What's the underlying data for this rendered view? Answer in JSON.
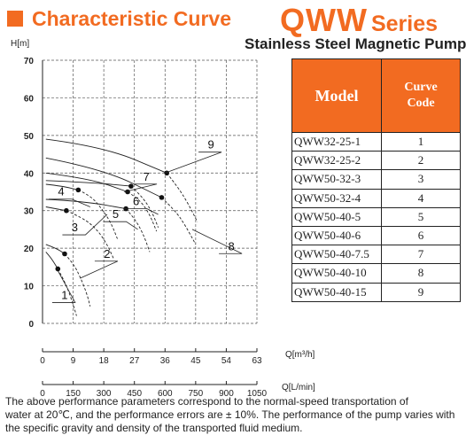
{
  "header": {
    "section_title": "Characteristic Curve",
    "series_main": "QWW",
    "series_suffix": "Series",
    "subtitle": "Stainless Steel Magnetic Pump",
    "accent_color": "#f26b21"
  },
  "chart_data": {
    "type": "line",
    "title": "",
    "ylabel": "H[m]",
    "xlabel": "Q[m³/h]",
    "xlabel_secondary": "Q[L/min]",
    "ylim": [
      0,
      70
    ],
    "xlim": [
      0,
      63
    ],
    "y_ticks": [
      "0",
      "10",
      "20",
      "30",
      "40",
      "50",
      "60",
      "70"
    ],
    "x_ticks": [
      "0",
      "9",
      "18",
      "27",
      "36",
      "45",
      "54",
      "63"
    ],
    "x_ticks_secondary": [
      "0",
      "150",
      "300",
      "450",
      "600",
      "750",
      "900",
      "1050"
    ],
    "grid": "dashed",
    "series": [
      {
        "name": "1",
        "label_at": [
          7,
          6.5
        ],
        "leader_to": [
          4.5,
          14
        ],
        "dot": [
          4.5,
          14.5
        ],
        "solid": [
          [
            1,
            19
          ],
          [
            2.5,
            17.5
          ],
          [
            4.5,
            14.5
          ]
        ],
        "dashed": [
          [
            4.5,
            14.5
          ],
          [
            6,
            12
          ],
          [
            7.5,
            9
          ],
          [
            9,
            5
          ],
          [
            10,
            2
          ]
        ]
      },
      {
        "name": "2",
        "label_at": [
          19.5,
          17.5
        ],
        "leader_to": [
          11,
          12
        ],
        "dot": [
          6.5,
          18.5
        ],
        "solid": [
          [
            1,
            21
          ],
          [
            4,
            20
          ],
          [
            6.5,
            18.5
          ]
        ],
        "dashed": [
          [
            6.5,
            18.5
          ],
          [
            9,
            16
          ],
          [
            11,
            12.5
          ],
          [
            13,
            8
          ],
          [
            14,
            4.5
          ]
        ]
      },
      {
        "name": "3",
        "label_at": [
          10,
          24.5
        ],
        "leader_to": [
          19,
          29
        ],
        "dot": [
          7,
          30
        ],
        "solid": [
          [
            1,
            31
          ],
          [
            4,
            30.5
          ],
          [
            7,
            30
          ]
        ],
        "dashed": [
          [
            7,
            30
          ],
          [
            12,
            28
          ],
          [
            16,
            25
          ],
          [
            19,
            21
          ],
          [
            21,
            17
          ]
        ]
      },
      {
        "name": "4",
        "label_at": [
          6,
          34
        ],
        "leader_to": [
          14,
          31
        ],
        "dot": [
          10.5,
          35.5
        ],
        "solid": [
          [
            1,
            37
          ],
          [
            6,
            36.5
          ],
          [
            10.5,
            35.5
          ]
        ],
        "dashed": [
          [
            10.5,
            35.5
          ],
          [
            14,
            34
          ],
          [
            17,
            31
          ],
          [
            20,
            27
          ],
          [
            22,
            22.5
          ]
        ]
      },
      {
        "name": "5",
        "label_at": [
          22,
          28
        ],
        "leader_to": [
          28,
          25
        ],
        "dot": [
          24.5,
          30.5
        ],
        "solid": [
          [
            1,
            33
          ],
          [
            12,
            32.5
          ],
          [
            24.5,
            30.5
          ]
        ],
        "dashed": [
          [
            24.5,
            30.5
          ],
          [
            27,
            28
          ],
          [
            29.5,
            24
          ],
          [
            31.5,
            19
          ]
        ]
      },
      {
        "name": "6",
        "label_at": [
          28,
          31.5
        ],
        "leader_to": [
          34,
          29
        ],
        "dot": [
          26,
          36.5
        ],
        "solid": [
          [
            1,
            38
          ],
          [
            14,
            37.5
          ],
          [
            26,
            36.5
          ]
        ],
        "dashed": [
          [
            26,
            36.5
          ],
          [
            29,
            34
          ],
          [
            32,
            30
          ],
          [
            34,
            25.5
          ]
        ]
      },
      {
        "name": "7",
        "label_at": [
          31,
          38
        ],
        "leader_to": [
          24,
          35
        ],
        "dot": [
          25,
          35
        ],
        "solid": [
          [
            1,
            40
          ],
          [
            14,
            38.5
          ],
          [
            25,
            35
          ]
        ],
        "dashed": [
          [
            25,
            35
          ],
          [
            28.5,
            33
          ],
          [
            31.5,
            29
          ],
          [
            33.5,
            24.5
          ]
        ]
      },
      {
        "name": "8",
        "label_at": [
          56,
          19.5
        ],
        "leader_to": [
          44,
          25
        ],
        "dot": [
          35,
          33.5
        ],
        "solid": [
          [
            1,
            44
          ],
          [
            18,
            41
          ],
          [
            35,
            33.5
          ]
        ],
        "dashed": [
          [
            35,
            33.5
          ],
          [
            39,
            30
          ],
          [
            42,
            26
          ],
          [
            45,
            21
          ]
        ]
      },
      {
        "name": "9",
        "label_at": [
          50,
          46.5
        ],
        "leader_to": [
          36,
          40
        ],
        "dot": [
          36.5,
          40
        ],
        "solid": [
          [
            1,
            49
          ],
          [
            18,
            47
          ],
          [
            36.5,
            40
          ]
        ],
        "dashed": [
          [
            36.5,
            40
          ],
          [
            40,
            36
          ],
          [
            43,
            31.5
          ],
          [
            45.5,
            27
          ]
        ]
      }
    ]
  },
  "model_table": {
    "header_model": "Model",
    "header_code_line1": "Curve",
    "header_code_line2": "Code",
    "rows": [
      {
        "model": "QWW32-25-1",
        "code": "1"
      },
      {
        "model": "QWW32-25-2",
        "code": "2"
      },
      {
        "model": "QWW50-32-3",
        "code": "3"
      },
      {
        "model": "QWW50-32-4",
        "code": "4"
      },
      {
        "model": "QWW50-40-5",
        "code": "5"
      },
      {
        "model": "QWW50-40-6",
        "code": "6"
      },
      {
        "model": "QWW50-40-7.5",
        "code": "7"
      },
      {
        "model": "QWW50-40-10",
        "code": "8"
      },
      {
        "model": "QWW50-40-15",
        "code": "9"
      }
    ]
  },
  "footnote": {
    "line1": "The above performance parameters correspond to the normal-speed transportation of",
    "line2": "water at 20℃, and the performance errors are ± 10%. The performance of the pump varies with",
    "line3": "the specific gravity and density of the transported fluid medium."
  }
}
